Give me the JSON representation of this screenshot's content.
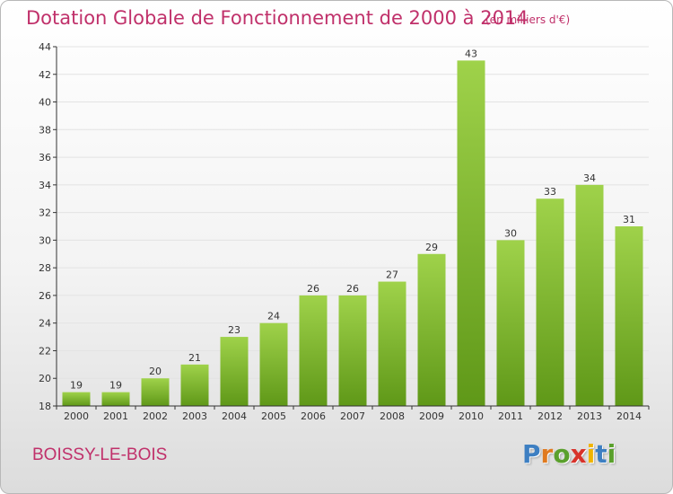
{
  "header": {
    "title": "Dotation Globale de Fonctionnement de 2000 à 2014",
    "subtitle": "(en milliers d'€)"
  },
  "footer": {
    "commune": "BOISSY-LE-BOIS",
    "logo": "Proxiti",
    "logo_colors": [
      "#3d7fc2",
      "#e07a1f",
      "#5aa02c",
      "#d8322a",
      "#f0b400",
      "#3d7fc2",
      "#5aa02c"
    ]
  },
  "colors": {
    "title": "#c0306a",
    "bar_light": "#9fd24a",
    "bar_dark": "#5f9818",
    "grid": "#e3e3e3",
    "axis": "#333333"
  },
  "chart_data": {
    "type": "bar",
    "categories": [
      "2000",
      "2001",
      "2002",
      "2003",
      "2004",
      "2005",
      "2006",
      "2007",
      "2008",
      "2009",
      "2010",
      "2011",
      "2012",
      "2013",
      "2014"
    ],
    "values": [
      19,
      19,
      20,
      21,
      23,
      24,
      26,
      26,
      27,
      29,
      43,
      30,
      33,
      34,
      31
    ],
    "title": "Dotation Globale de Fonctionnement de 2000 à 2014",
    "subtitle": "(en milliers d'€)",
    "xlabel": "",
    "ylabel": "",
    "ylim": [
      18,
      44
    ],
    "yticks": [
      18,
      20,
      22,
      24,
      26,
      28,
      30,
      32,
      34,
      36,
      38,
      40,
      42,
      44
    ],
    "grid": true,
    "data_labels": true
  }
}
